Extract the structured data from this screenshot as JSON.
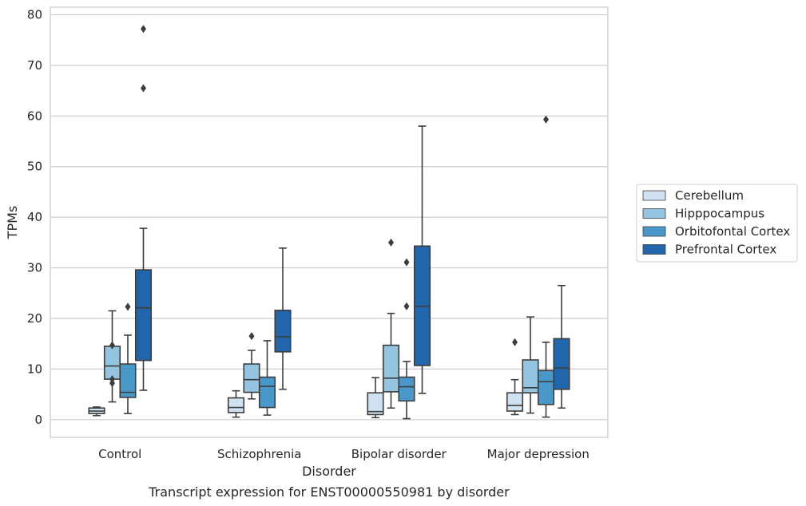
{
  "chart_data": {
    "type": "boxplot",
    "xlabel": "Disorder",
    "ylabel": "TPMs",
    "caption": "Transcript expression for ENST00000550981 by disorder",
    "ylim": [
      -3.5,
      81.5
    ],
    "yticks": [
      0,
      10,
      20,
      30,
      40,
      50,
      60,
      70,
      80
    ],
    "grid": "horizontal",
    "legend_position": "right",
    "categories": [
      "Control",
      "Schizophrenia",
      "Bipolar disorder",
      "Major depression"
    ],
    "series": [
      {
        "name": "Cerebellum",
        "color": "#d0e1f2",
        "boxes": [
          {
            "whislo": 0.8,
            "q1": 1.2,
            "med": 1.7,
            "q3": 2.3,
            "whishi": 2.5,
            "fliers": []
          },
          {
            "whislo": 0.5,
            "q1": 1.4,
            "med": 2.4,
            "q3": 4.3,
            "whishi": 5.7,
            "fliers": []
          },
          {
            "whislo": 0.4,
            "q1": 1.0,
            "med": 1.6,
            "q3": 5.3,
            "whishi": 8.3,
            "fliers": []
          },
          {
            "whislo": 1.0,
            "q1": 1.7,
            "med": 2.8,
            "q3": 5.3,
            "whishi": 7.9,
            "fliers": [
              15.3
            ]
          }
        ]
      },
      {
        "name": "Hipppocampus",
        "color": "#94c4df",
        "boxes": [
          {
            "whislo": 3.5,
            "q1": 8.0,
            "med": 10.6,
            "q3": 14.5,
            "whishi": 21.5,
            "fliers": [
              14.7,
              8.0,
              7.2
            ]
          },
          {
            "whislo": 4.1,
            "q1": 5.4,
            "med": 7.9,
            "q3": 11.0,
            "whishi": 13.7,
            "fliers": [
              16.5
            ]
          },
          {
            "whislo": 2.3,
            "q1": 5.5,
            "med": 8.2,
            "q3": 14.7,
            "whishi": 21.0,
            "fliers": [
              35.0
            ]
          },
          {
            "whislo": 1.3,
            "q1": 5.3,
            "med": 6.3,
            "q3": 11.8,
            "whishi": 20.3,
            "fliers": []
          }
        ]
      },
      {
        "name": "Orbitofontal Cortex",
        "color": "#4a98c9",
        "boxes": [
          {
            "whislo": 1.2,
            "q1": 4.4,
            "med": 5.4,
            "q3": 11.0,
            "whishi": 16.7,
            "fliers": [
              22.3
            ]
          },
          {
            "whislo": 0.9,
            "q1": 2.4,
            "med": 6.6,
            "q3": 8.4,
            "whishi": 15.6,
            "fliers": []
          },
          {
            "whislo": 0.2,
            "q1": 3.7,
            "med": 6.5,
            "q3": 8.4,
            "whishi": 11.5,
            "fliers": [
              31.1,
              22.4
            ]
          },
          {
            "whislo": 0.5,
            "q1": 3.0,
            "med": 7.5,
            "q3": 9.7,
            "whishi": 15.3,
            "fliers": [
              59.3
            ]
          }
        ]
      },
      {
        "name": "Prefrontal Cortex",
        "color": "#2166ac",
        "boxes": [
          {
            "whislo": 5.8,
            "q1": 11.7,
            "med": 22.1,
            "q3": 29.6,
            "whishi": 37.8,
            "fliers": [
              77.2,
              65.5
            ]
          },
          {
            "whislo": 6.0,
            "q1": 13.4,
            "med": 16.4,
            "q3": 21.6,
            "whishi": 33.9,
            "fliers": []
          },
          {
            "whislo": 5.2,
            "q1": 10.7,
            "med": 22.4,
            "q3": 34.3,
            "whishi": 58.0,
            "fliers": []
          },
          {
            "whislo": 2.3,
            "q1": 6.0,
            "med": 10.2,
            "q3": 16.0,
            "whishi": 26.5,
            "fliers": []
          }
        ]
      }
    ]
  }
}
